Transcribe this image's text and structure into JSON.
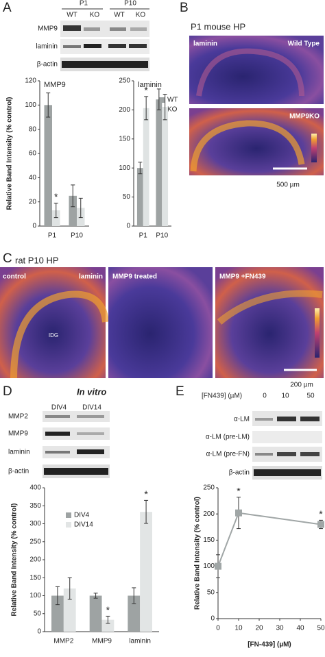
{
  "panels": {
    "A": {
      "label": "A",
      "groups": [
        "P1",
        "P10"
      ],
      "lanes": [
        "WT",
        "KO",
        "WT",
        "KO"
      ],
      "rows": [
        "MMP9",
        "laminin",
        "β-actin"
      ]
    },
    "B": {
      "label": "B",
      "title": "P1 mouse HP",
      "images": [
        {
          "left": "laminin",
          "right": "Wild Type"
        },
        {
          "right": "MMP9KO"
        }
      ],
      "scale": "500 µm"
    },
    "C": {
      "label": "C",
      "title": "rat P10 HP",
      "images": [
        {
          "left": "control",
          "right": "laminin",
          "center": "IDG"
        },
        {
          "left": "MMP9 treated"
        },
        {
          "left": "MMP9 +FN439"
        }
      ],
      "scale": "200 µm"
    },
    "D": {
      "label": "D",
      "title": "In vitro",
      "lanes": [
        "DIV4",
        "DIV14"
      ],
      "rows": [
        "MMP2",
        "MMP9",
        "laminin",
        "β-actin"
      ]
    },
    "E": {
      "label": "E",
      "header": "[FN439] (µM)",
      "lanes": [
        "0",
        "10",
        "50"
      ],
      "rows": [
        "α-LM",
        "α-LM (pre-LM)",
        "α-LM (pre-FN)",
        "β-actin"
      ]
    }
  },
  "chart_data": [
    {
      "type": "bar",
      "title": "MMP9",
      "y_label": "Relative Band Intensity (% control)",
      "categories": [
        "P1",
        "P10"
      ],
      "series": [
        {
          "name": "WT",
          "color": "#9ea3a3",
          "values": [
            100,
            25
          ],
          "errors": [
            10,
            9
          ]
        },
        {
          "name": "KO",
          "color": "#dfe3e3",
          "values": [
            13,
            15
          ],
          "errors": [
            6,
            8
          ]
        }
      ],
      "ylim": [
        0,
        120
      ],
      "yticks": [
        0,
        20,
        40,
        60,
        80,
        100,
        120
      ],
      "legend": "right",
      "annotations": [
        {
          "text": "*",
          "category": "P1",
          "series": "KO"
        }
      ]
    },
    {
      "type": "bar",
      "title": "laminin",
      "categories": [
        "P1",
        "P10"
      ],
      "series": [
        {
          "color": "#9ea3a3",
          "values": [
            100,
            218
          ],
          "errors": [
            10,
            18
          ]
        },
        {
          "color": "#dfe3e3",
          "values": [
            203,
            205
          ],
          "errors": [
            20,
            22
          ]
        }
      ],
      "ylim": [
        0,
        250
      ],
      "yticks": [
        0,
        50,
        100,
        150,
        200,
        250
      ],
      "annotations": [
        {
          "text": "*",
          "category": "P1",
          "series": 1
        }
      ]
    },
    {
      "type": "bar",
      "y_label": "Relative Band Intensity (% control)",
      "categories": [
        "MMP2",
        "MMP9",
        "laminin"
      ],
      "series": [
        {
          "name": "DIV4",
          "color": "#9ea3a3",
          "values": [
            100,
            100,
            100
          ],
          "errors": [
            25,
            7,
            22
          ]
        },
        {
          "name": "DIV14",
          "color": "#e2e5e5",
          "values": [
            120,
            33,
            333
          ],
          "errors": [
            30,
            10,
            32
          ]
        }
      ],
      "ylim": [
        0,
        400
      ],
      "yticks": [
        0,
        50,
        100,
        150,
        200,
        250,
        300,
        350,
        400
      ],
      "legend": "upper left",
      "annotations": [
        {
          "text": "*",
          "category": "MMP9",
          "series": "DIV14"
        },
        {
          "text": "*",
          "category": "laminin",
          "series": "DIV14"
        }
      ]
    },
    {
      "type": "line",
      "x_label": "[FN-439] (µM)",
      "y_label": "Relative Band Intensity (% control)",
      "x": [
        0,
        10,
        50
      ],
      "series": [
        {
          "color": "#a0a6a6",
          "values": [
            100,
            202,
            180
          ],
          "errors": [
            22,
            30,
            8
          ]
        }
      ],
      "xlim": [
        0,
        50
      ],
      "xticks": [
        0,
        10,
        20,
        30,
        40,
        50
      ],
      "ylim": [
        0,
        250
      ],
      "yticks": [
        0,
        50,
        100,
        150,
        200,
        250
      ],
      "annotations": [
        {
          "text": "*",
          "x": 10
        },
        {
          "text": "*",
          "x": 50
        }
      ]
    }
  ]
}
